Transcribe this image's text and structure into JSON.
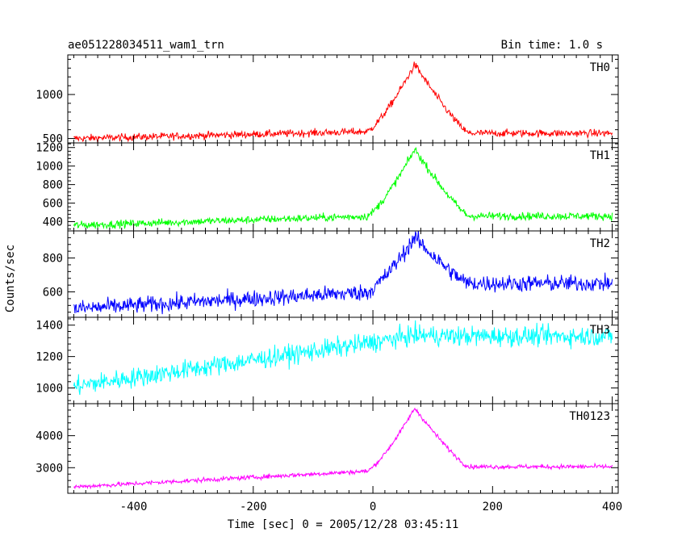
{
  "header": {
    "title": "ae051228034511_wam1_trn",
    "bin_time": "Bin time: 1.0 s"
  },
  "chart_data": {
    "type": "line",
    "xlabel": "Time [sec] 0 = 2005/12/28 03:45:11",
    "ylabel": "Counts/sec",
    "xlim": [
      -510,
      410
    ],
    "x_ticks": [
      -400,
      -200,
      0,
      200,
      400
    ],
    "x_range": [
      -500,
      400
    ],
    "peak_time": 70,
    "panels": [
      {
        "name": "TH0",
        "color": "#ff0000",
        "ylim": [
          450,
          1450
        ],
        "y_ticks": [
          500,
          1000
        ],
        "baseline_start": 500,
        "baseline_pre": 580,
        "peak": 1350,
        "baseline_post": 560,
        "noise": 30
      },
      {
        "name": "TH1",
        "color": "#00ff00",
        "ylim": [
          300,
          1250
        ],
        "y_ticks": [
          400,
          600,
          800,
          1000,
          1200
        ],
        "baseline_start": 360,
        "baseline_pre": 460,
        "peak": 1180,
        "baseline_post": 460,
        "noise": 30
      },
      {
        "name": "TH2",
        "color": "#0000ff",
        "ylim": [
          450,
          960
        ],
        "y_ticks": [
          600,
          800
        ],
        "baseline_start": 500,
        "baseline_pre": 600,
        "peak": 900,
        "baseline_post": 650,
        "noise": 35
      },
      {
        "name": "TH3",
        "color": "#00ffff",
        "ylim": [
          900,
          1450
        ],
        "y_ticks": [
          1000,
          1200,
          1400
        ],
        "baseline_start": 1010,
        "baseline_pre": 1290,
        "peak": 1320,
        "baseline_post": 1330,
        "noise": 45
      },
      {
        "name": "TH0123",
        "color": "#ff00ff",
        "ylim": [
          2200,
          5000
        ],
        "y_ticks": [
          3000,
          4000
        ],
        "baseline_start": 2400,
        "baseline_pre": 2900,
        "peak": 4800,
        "baseline_post": 3030,
        "noise": 50
      }
    ]
  }
}
